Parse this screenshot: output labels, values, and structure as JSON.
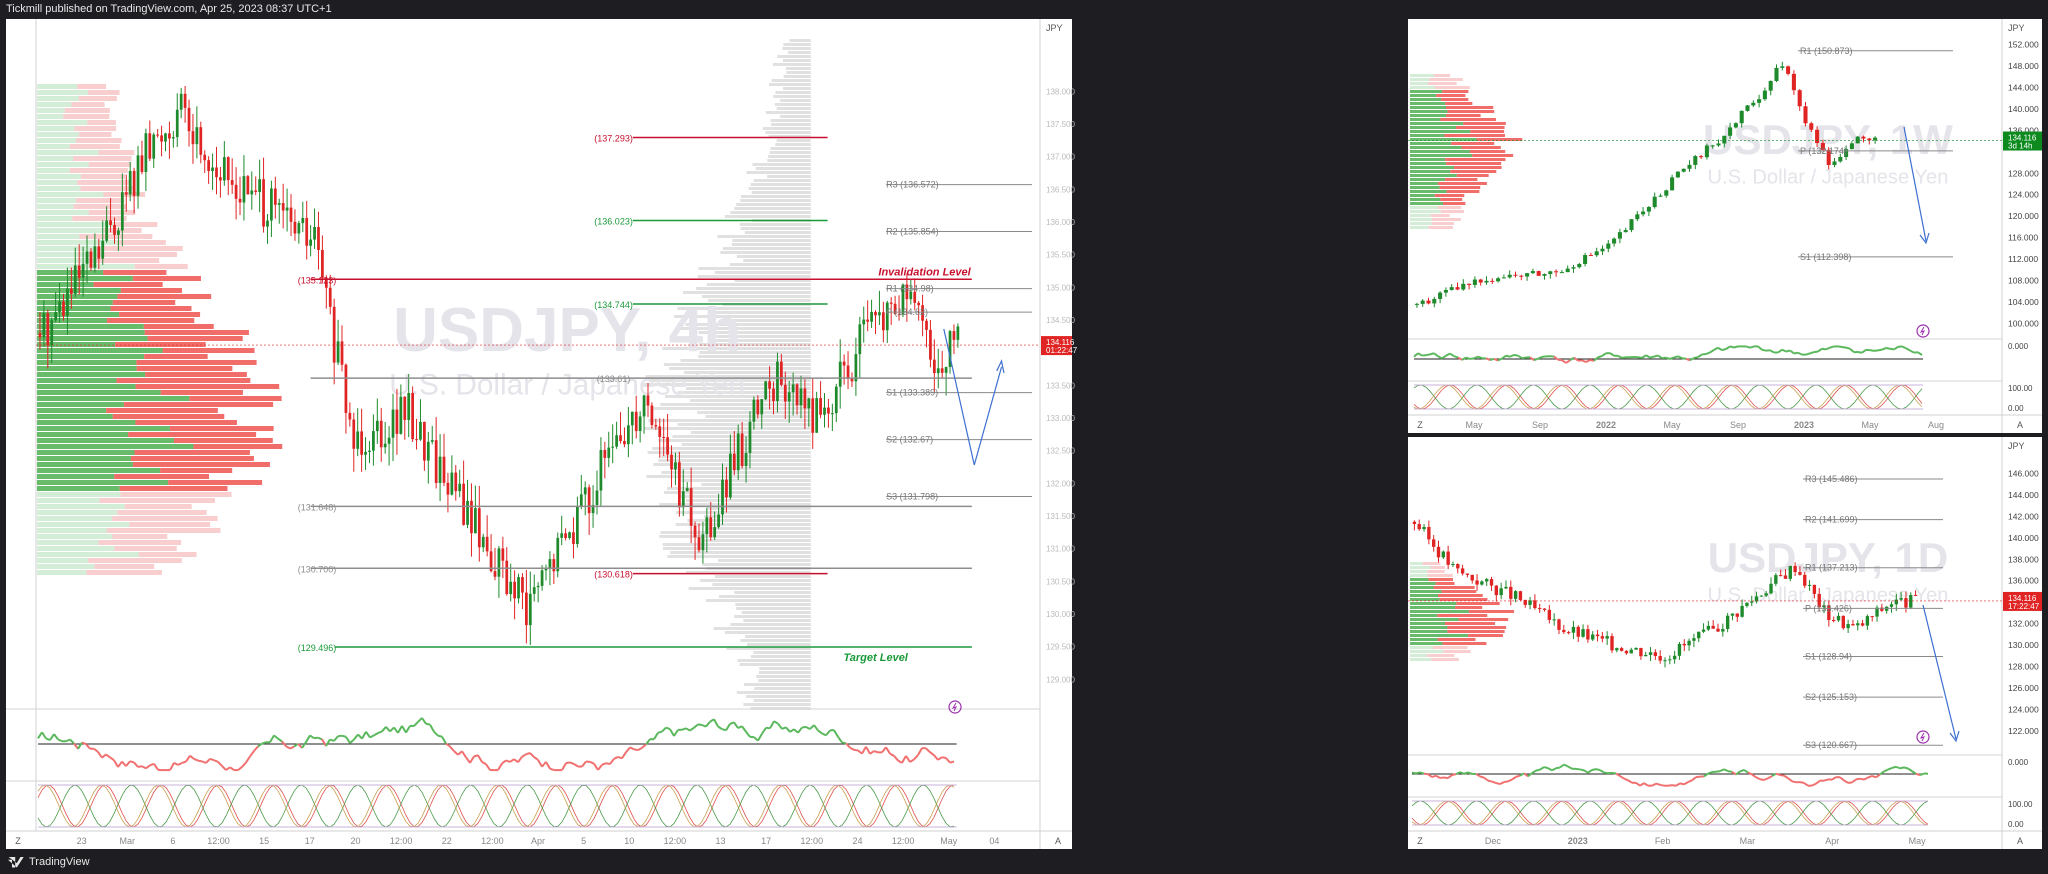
{
  "header": {
    "publisher_line": "Tickmill published on TradingView.com, Apr 25, 2023 08:37 UTC+1"
  },
  "footer": {
    "brand": "TradingView"
  },
  "colors": {
    "up": "#1e8a2c",
    "down": "#e02424",
    "level_red": "#c8102e",
    "level_green": "#1a9a3a",
    "price_badge": "#e02424",
    "price_badge_green": "#0c8a1e"
  },
  "main_chart": {
    "watermark_symbol": "USDJPY, 4h",
    "watermark_desc": "U.S. Dollar / Japanese Yen",
    "axis_currency": "JPY",
    "price_badge": "134.116",
    "price_badge_timer": "01:22:47",
    "invalidation_label": "Invalidation Level",
    "target_label": "Target Level",
    "levels": [
      {
        "label": "(137.293)",
        "price": 137.293,
        "color": "red"
      },
      {
        "label": "(136.023)",
        "price": 136.023,
        "color": "green"
      },
      {
        "label": "(135.123)",
        "price": 135.123,
        "color": "red"
      },
      {
        "label": "(134.744)",
        "price": 134.744,
        "color": "green"
      },
      {
        "label": "(133.61)",
        "price": 133.61,
        "color": "grey"
      },
      {
        "label": "(131.648)",
        "price": 131.648,
        "color": "grey"
      },
      {
        "label": "(130.700)",
        "price": 130.7,
        "color": "grey"
      },
      {
        "label": "(130.618)",
        "price": 130.618,
        "color": "red"
      },
      {
        "label": "(129.496)",
        "price": 129.496,
        "color": "green"
      }
    ],
    "pivots": [
      {
        "label": "R3 (136.572)",
        "price": 136.572
      },
      {
        "label": "R2 (135.854)",
        "price": 135.854
      },
      {
        "label": "R1 (134.98)",
        "price": 134.98
      },
      {
        "label": "P (134.62)",
        "price": 134.62
      },
      {
        "label": "S1 (133.389)",
        "price": 133.389
      },
      {
        "label": "S2 (132.67)",
        "price": 132.67
      },
      {
        "label": "S3 (131.798)",
        "price": 131.798
      }
    ],
    "price_ticks": [
      "138.000",
      "137.500",
      "137.000",
      "136.500",
      "136.000",
      "135.500",
      "135.000",
      "134.500",
      "133.500",
      "133.000",
      "132.500",
      "132.000",
      "131.500",
      "131.000",
      "130.500",
      "130.000",
      "129.500",
      "129.000"
    ],
    "time_labels": [
      "Z",
      "23",
      "Mar",
      "6",
      "12:00",
      "15",
      "17",
      "20",
      "12:00",
      "22",
      "12:00",
      "Apr",
      "5",
      "10",
      "12:00",
      "13",
      "17",
      "12:00",
      "24",
      "12:00",
      "May",
      "04"
    ]
  },
  "weekly_chart": {
    "watermark_symbol": "USDJPY, 1W",
    "watermark_desc": "U.S. Dollar / Japanese Yen",
    "axis_currency": "JPY",
    "price_badge": "134.116",
    "price_badge_timer": "3d 14h",
    "pivots": [
      {
        "label": "R1 (150.873)",
        "price": 150.873
      },
      {
        "label": "P (132.174)",
        "price": 132.174
      },
      {
        "label": "S1 (112.398)",
        "price": 112.398
      }
    ],
    "price_ticks": [
      "152.000",
      "148.000",
      "144.000",
      "140.000",
      "136.000",
      "128.000",
      "124.000",
      "120.000",
      "116.000",
      "112.000",
      "108.000",
      "104.000",
      "100.000"
    ],
    "osc_ticks": [
      "0.000",
      "100.00",
      "0.00"
    ],
    "time_labels": [
      "Z",
      "May",
      "Sep",
      "2022",
      "May",
      "Sep",
      "2023",
      "May",
      "Aug"
    ]
  },
  "daily_chart": {
    "watermark_symbol": "USDJPY, 1D",
    "watermark_desc": "U.S. Dollar / Japanese Yen",
    "axis_currency": "JPY",
    "price_badge": "134.116",
    "price_badge_timer": "17:22:47",
    "pivots": [
      {
        "label": "R3 (145.486)",
        "price": 145.486
      },
      {
        "label": "R2 (141.699)",
        "price": 141.699
      },
      {
        "label": "R1 (137.213)",
        "price": 137.213
      },
      {
        "label": "P (133.426)",
        "price": 133.426
      },
      {
        "label": "S1 (128.94)",
        "price": 128.94
      },
      {
        "label": "S2 (125.153)",
        "price": 125.153
      },
      {
        "label": "S3 (120.667)",
        "price": 120.667
      }
    ],
    "price_ticks": [
      "146.000",
      "144.000",
      "142.000",
      "140.000",
      "138.000",
      "136.000",
      "132.000",
      "130.000",
      "128.000",
      "126.000",
      "124.000",
      "122.000"
    ],
    "osc_ticks": [
      "0.000",
      "100.00",
      "0.00"
    ],
    "time_labels": [
      "Z",
      "Dec",
      "2023",
      "Feb",
      "Mar",
      "Apr",
      "May"
    ]
  }
}
